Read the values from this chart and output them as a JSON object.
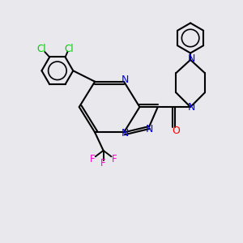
{
  "bg_color": "#e8e8ed",
  "bond_color": "#000000",
  "N_color": "#0000ff",
  "O_color": "#ff0000",
  "F_color": "#ff00cc",
  "Cl_color": "#00cc00",
  "line_width": 1.5,
  "figsize": [
    3.0,
    3.0
  ],
  "dpi": 100,
  "xlim": [
    0,
    10
  ],
  "ylim": [
    0,
    10
  ]
}
